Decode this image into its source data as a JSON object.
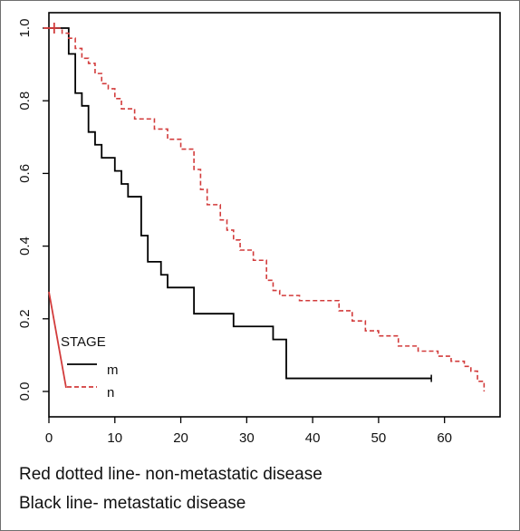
{
  "chart_data": {
    "type": "line",
    "step": true,
    "xlim": [
      0,
      66
    ],
    "ylim": [
      0,
      1.0
    ],
    "xticks": [
      0,
      10,
      20,
      30,
      40,
      50,
      60
    ],
    "yticks": [
      0.0,
      0.2,
      0.4,
      0.6,
      0.8,
      1.0
    ],
    "xtick_labels": [
      "0",
      "10",
      "20",
      "30",
      "40",
      "50",
      "60"
    ],
    "ytick_labels": [
      "0.0",
      "0.2",
      "0.4",
      "0.6",
      "0.8",
      "1.0"
    ],
    "grid": false,
    "legend": {
      "title": "STAGE",
      "placement": "bottom-left",
      "entries": [
        {
          "label": "m",
          "color": "#000000",
          "style": "solid"
        },
        {
          "label": "n",
          "color": "#d23b3b",
          "style": "dashed"
        }
      ]
    },
    "series": [
      {
        "name": "m",
        "color": "#000000",
        "style": "solid",
        "x": [
          0,
          3,
          4,
          5,
          6,
          7,
          8,
          10,
          11,
          12,
          14,
          15,
          17,
          18,
          22,
          28,
          34,
          36,
          58
        ],
        "y": [
          1.0,
          0.929,
          0.821,
          0.786,
          0.714,
          0.679,
          0.643,
          0.607,
          0.571,
          0.536,
          0.429,
          0.357,
          0.321,
          0.286,
          0.214,
          0.179,
          0.143,
          0.036,
          0.036
        ]
      },
      {
        "name": "n",
        "color": "#d23b3b",
        "style": "dashed",
        "x": [
          0,
          2,
          3,
          4,
          5,
          6,
          7,
          8,
          9,
          10,
          11,
          13,
          16,
          18,
          20,
          22,
          23,
          24,
          26,
          27,
          28,
          29,
          31,
          33,
          34,
          35,
          38,
          44,
          46,
          48,
          50,
          53,
          56,
          59,
          61,
          63,
          64,
          65,
          66
        ],
        "y": [
          1.0,
          0.986,
          0.972,
          0.944,
          0.917,
          0.903,
          0.875,
          0.847,
          0.833,
          0.806,
          0.778,
          0.75,
          0.722,
          0.694,
          0.667,
          0.611,
          0.556,
          0.514,
          0.472,
          0.444,
          0.417,
          0.389,
          0.361,
          0.306,
          0.278,
          0.264,
          0.25,
          0.222,
          0.194,
          0.167,
          0.153,
          0.125,
          0.111,
          0.097,
          0.083,
          0.069,
          0.056,
          0.028,
          0.0
        ]
      }
    ]
  },
  "caption": {
    "line1": "Red dotted line- non-metastatic disease",
    "line2": "Black line- metastatic disease"
  }
}
